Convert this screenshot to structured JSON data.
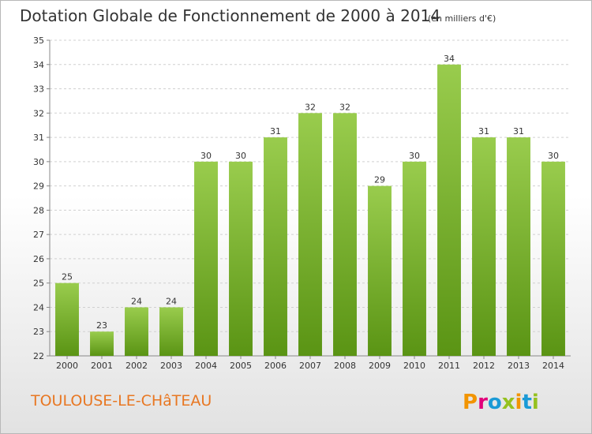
{
  "title": "Dotation Globale de Fonctionnement de 2000 à 2014",
  "unit_note": "(en milliers d'€)",
  "commune": "TOULOUSE-LE-CHâTEAU",
  "logo": {
    "text": "Proxiti",
    "colors": [
      "#f29400",
      "#e2007a",
      "#1b9ad6",
      "#95c11f",
      "#f29400",
      "#1b9ad6",
      "#95c11f"
    ]
  },
  "colors": {
    "bar_top": "#99cc4d",
    "bar_bottom": "#5a9414",
    "commune_text": "#e87722"
  },
  "chart_data": {
    "type": "bar",
    "title": "Dotation Globale de Fonctionnement de 2000 à 2014",
    "categories": [
      "2000",
      "2001",
      "2002",
      "2003",
      "2004",
      "2005",
      "2006",
      "2007",
      "2008",
      "2009",
      "2010",
      "2011",
      "2012",
      "2013",
      "2014"
    ],
    "values": [
      25,
      23,
      24,
      24,
      30,
      30,
      31,
      32,
      32,
      29,
      30,
      34,
      31,
      31,
      30
    ],
    "ylim": [
      22,
      35
    ],
    "yticks": [
      22,
      23,
      24,
      25,
      26,
      27,
      28,
      29,
      30,
      31,
      32,
      33,
      34,
      35
    ],
    "grid": true,
    "data_labels": true
  }
}
